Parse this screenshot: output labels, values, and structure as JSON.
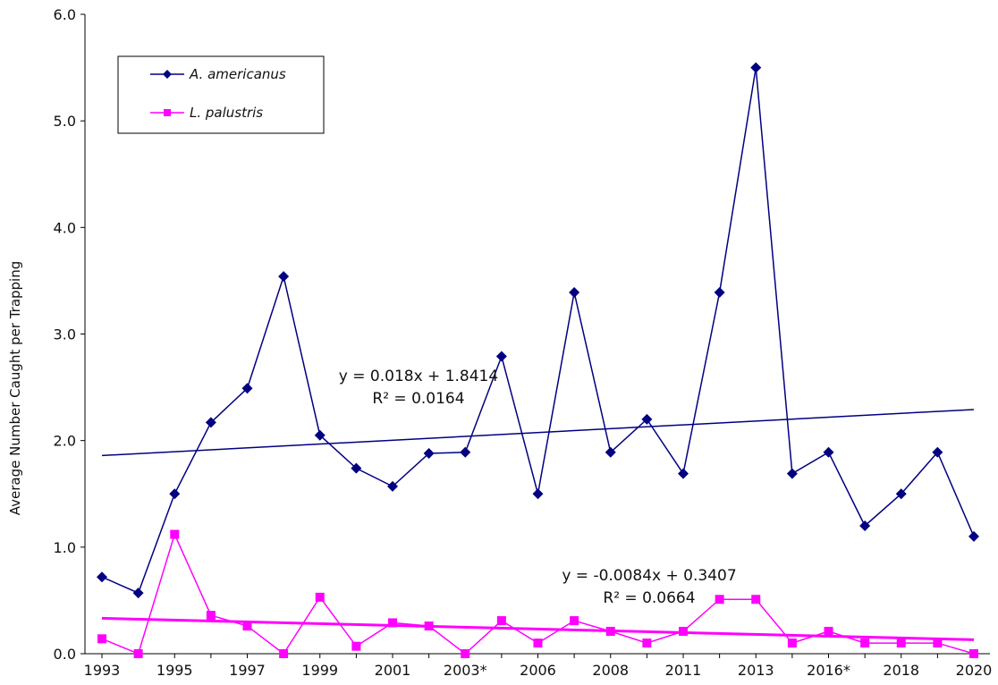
{
  "chart_data": {
    "type": "line",
    "title": "",
    "xlabel": "",
    "ylabel": "Average Number Caught per Trapping",
    "ylim": [
      0,
      6
    ],
    "yticks": [
      "0.0",
      "1.0",
      "2.0",
      "3.0",
      "4.0",
      "5.0",
      "6.0"
    ],
    "categories": [
      "1993",
      "1994",
      "1995",
      "1996",
      "1997",
      "1998",
      "1999",
      "2000",
      "2001",
      "2002",
      "2003*",
      "2004",
      "2006",
      "2007",
      "2008",
      "2009",
      "2011",
      "2012",
      "2013",
      "2014",
      "2016*",
      "2017",
      "2018",
      "2019",
      "2020"
    ],
    "xtick_labels_shown": [
      "1993",
      "1995",
      "1997",
      "1999",
      "2001",
      "2003*",
      "2006",
      "2008",
      "2011",
      "2013",
      "2016*",
      "2018",
      "2020"
    ],
    "series": [
      {
        "name": "A. americanus",
        "color": "#000080",
        "marker": "diamond",
        "values": [
          0.72,
          0.57,
          1.5,
          2.17,
          2.49,
          3.54,
          2.05,
          1.74,
          1.57,
          1.88,
          1.89,
          2.79,
          1.5,
          3.39,
          1.89,
          2.2,
          1.69,
          3.39,
          5.5,
          1.69,
          1.89,
          1.2,
          1.5,
          1.89,
          1.1
        ],
        "trendline": {
          "equation": "y = 0.018x + 1.8414",
          "r2": "R² = 0.0164",
          "slope": 0.018,
          "intercept": 1.8414
        }
      },
      {
        "name": "L. palustris",
        "color": "#ff00ff",
        "marker": "square",
        "values": [
          0.14,
          0.0,
          1.12,
          0.36,
          0.26,
          0.0,
          0.53,
          0.07,
          0.29,
          0.26,
          0.0,
          0.31,
          0.1,
          0.31,
          0.21,
          0.1,
          0.21,
          0.51,
          0.51,
          0.1,
          0.21,
          0.1,
          0.1,
          0.1,
          0.0
        ],
        "trendline": {
          "equation": "y = -0.0084x + 0.3407",
          "r2": "R² = 0.0664",
          "slope": -0.0084,
          "intercept": 0.3407
        }
      }
    ],
    "legend": {
      "placement": "top-left"
    },
    "grid": false
  }
}
